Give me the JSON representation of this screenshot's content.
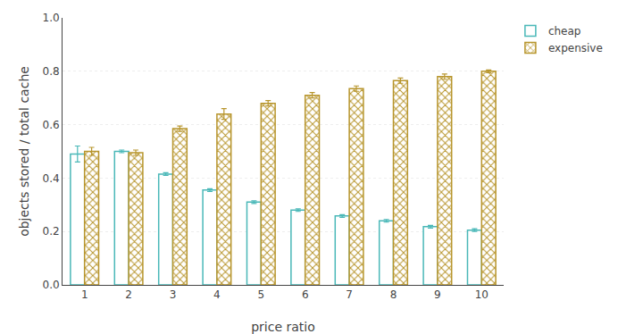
{
  "chart_data": {
    "type": "bar",
    "xlabel": "price ratio",
    "ylabel": "objects stored / total cache",
    "categories": [
      "1",
      "2",
      "3",
      "4",
      "5",
      "6",
      "7",
      "8",
      "9",
      "10"
    ],
    "series": [
      {
        "name": "cheap",
        "color": "#4ab8b8",
        "values": [
          0.49,
          0.5,
          0.415,
          0.355,
          0.31,
          0.28,
          0.258,
          0.24,
          0.218,
          0.205
        ],
        "yerr_low": [
          0.03,
          0.005,
          0.005,
          0.005,
          0.005,
          0.005,
          0.005,
          0.005,
          0.005,
          0.005
        ],
        "yerr_high": [
          0.03,
          0.005,
          0.005,
          0.005,
          0.005,
          0.005,
          0.005,
          0.005,
          0.005,
          0.005
        ]
      },
      {
        "name": "expensive",
        "color": "#b8962e",
        "marker": "hatch",
        "values": [
          0.5,
          0.495,
          0.585,
          0.64,
          0.68,
          0.71,
          0.735,
          0.765,
          0.78,
          0.8
        ],
        "yerr_low": [
          0.015,
          0.01,
          0.01,
          0.02,
          0.01,
          0.01,
          0.01,
          0.01,
          0.01,
          0.005
        ],
        "yerr_high": [
          0.015,
          0.01,
          0.01,
          0.02,
          0.01,
          0.01,
          0.01,
          0.01,
          0.01,
          0.005
        ]
      }
    ],
    "ylim": [
      0,
      1.0
    ],
    "yticks": [
      {
        "value": 0,
        "label": "0.0"
      },
      0.2,
      0.4,
      0.6,
      0.8,
      {
        "value": 1.0,
        "label": "1.0"
      }
    ],
    "grid": true,
    "legend": "right"
  }
}
